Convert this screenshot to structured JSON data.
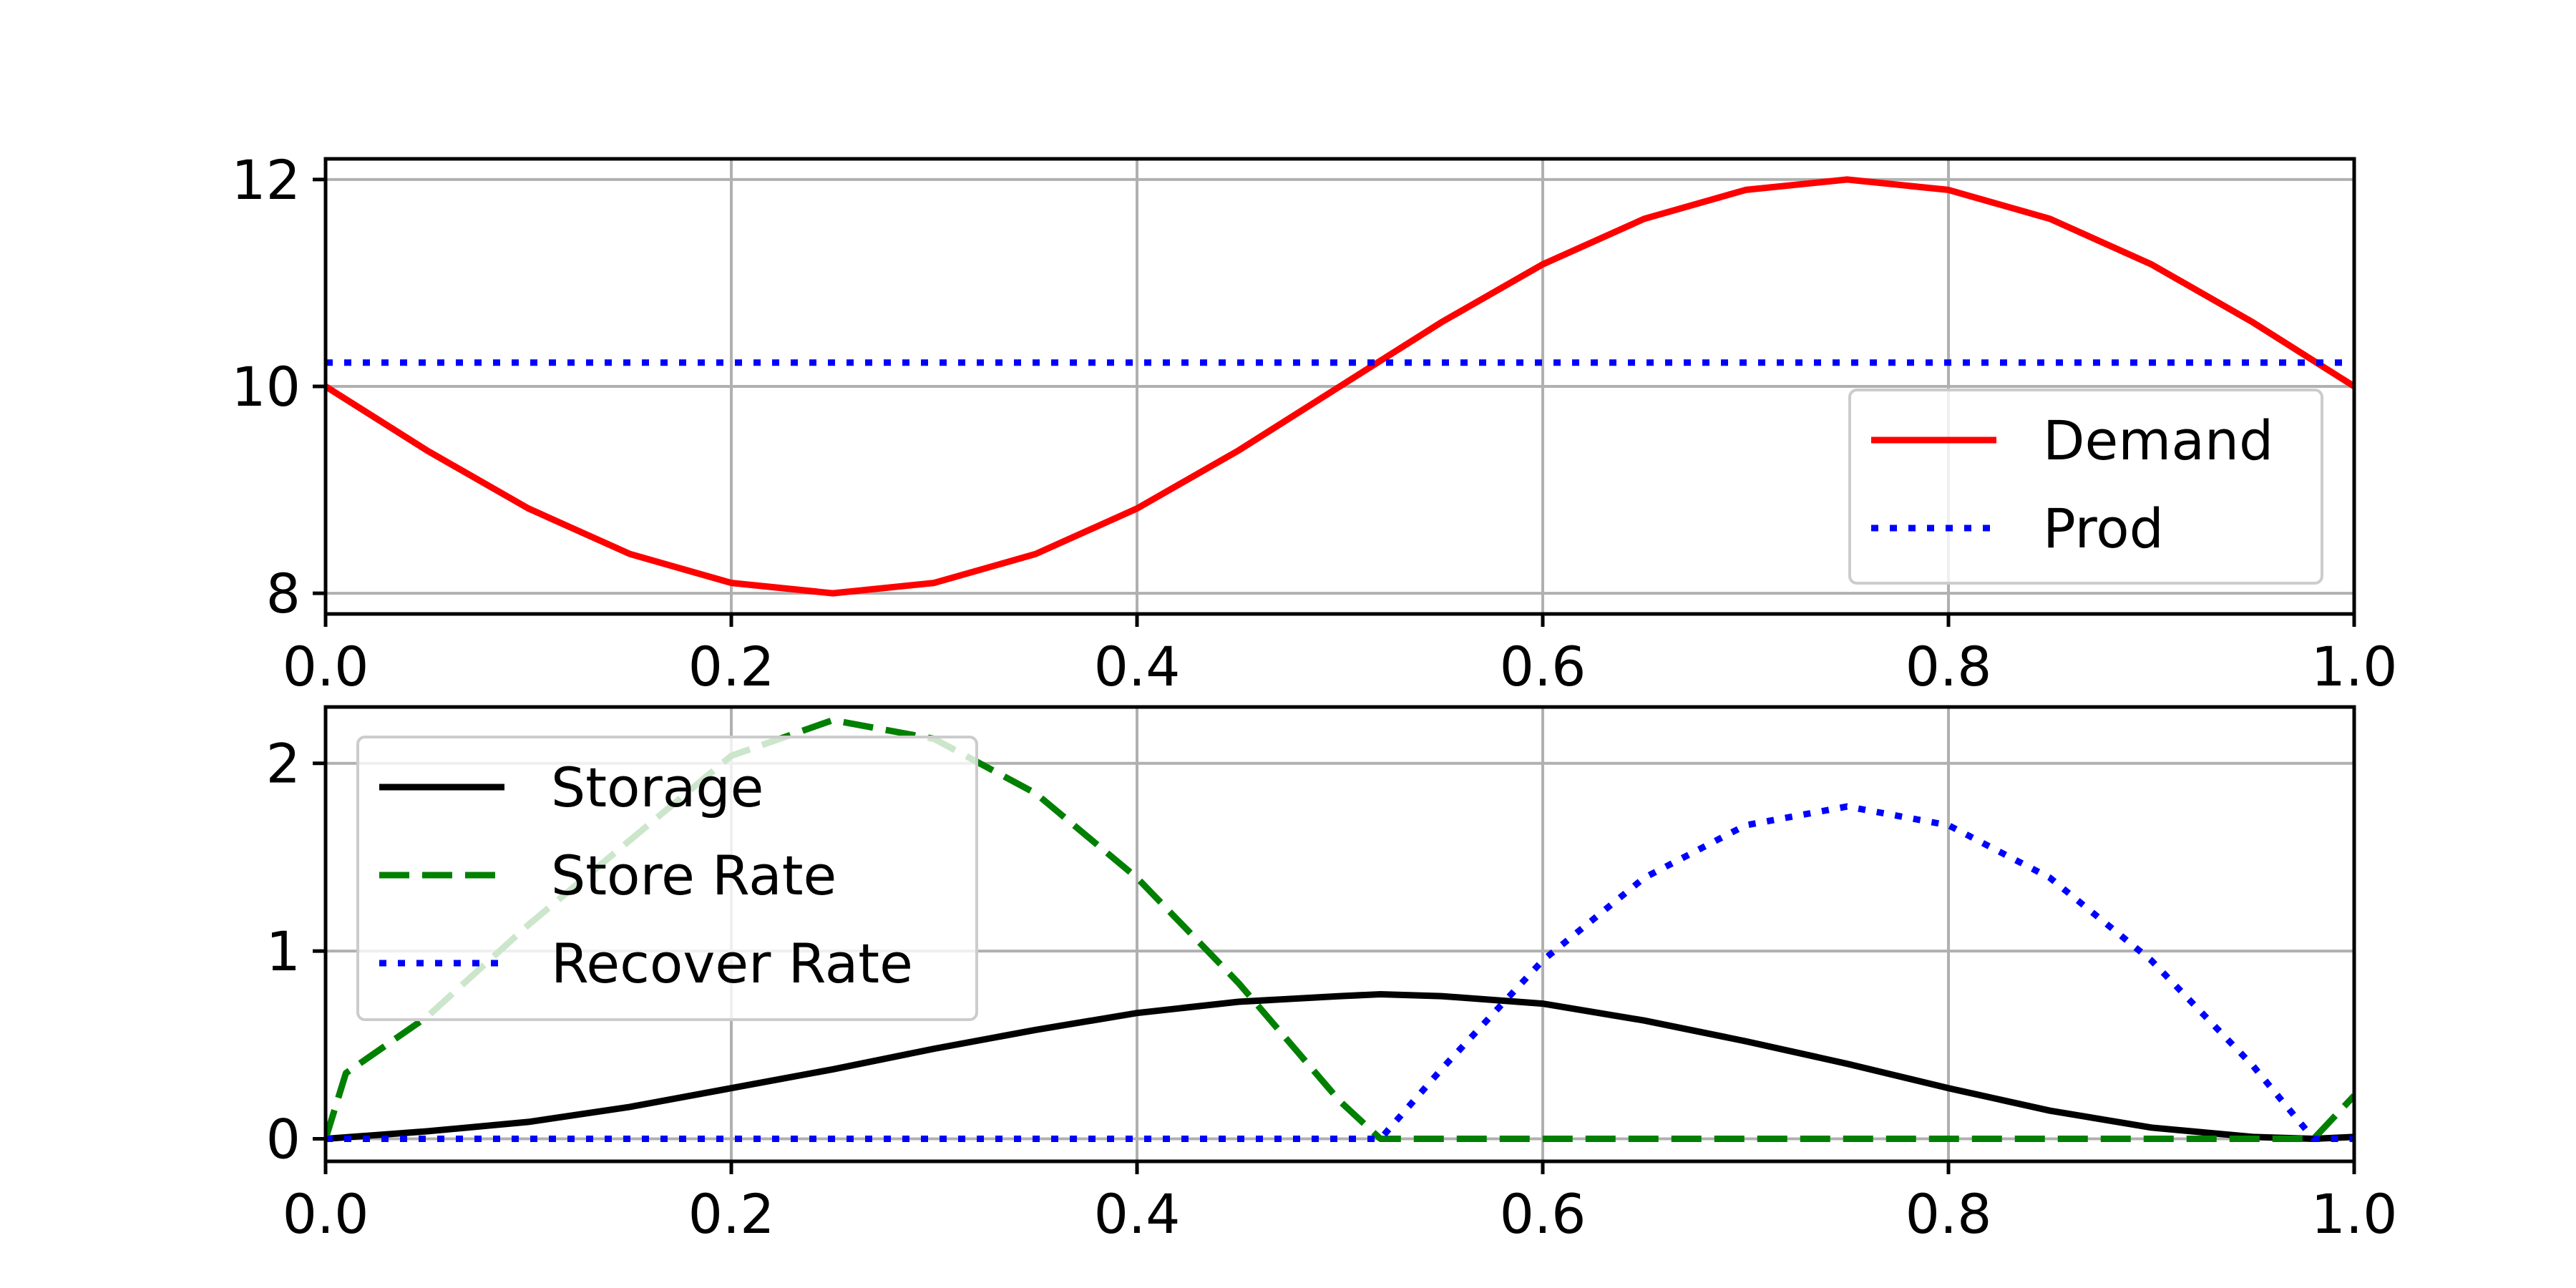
{
  "chart_data": [
    {
      "type": "line",
      "title": "",
      "xlabel": "",
      "ylabel": "",
      "xlim": [
        0.0,
        1.0
      ],
      "ylim": [
        7.8,
        12.2
      ],
      "xticks": [
        "0.0",
        "0.2",
        "0.4",
        "0.6",
        "0.8",
        "1.0"
      ],
      "yticks": [
        "8",
        "10",
        "12"
      ],
      "grid": true,
      "legend_position": "lower-right",
      "x": [
        0.0,
        0.05,
        0.1,
        0.15,
        0.2,
        0.25,
        0.3,
        0.35,
        0.4,
        0.45,
        0.5,
        0.55,
        0.6,
        0.65,
        0.7,
        0.75,
        0.8,
        0.85,
        0.9,
        0.95,
        1.0
      ],
      "series": [
        {
          "name": "Demand",
          "color": "#ff0000",
          "style": "solid",
          "values": [
            10.0,
            9.38,
            8.82,
            8.38,
            8.1,
            8.0,
            8.1,
            8.38,
            8.82,
            9.38,
            10.0,
            10.62,
            11.18,
            11.62,
            11.9,
            12.0,
            11.9,
            11.62,
            11.18,
            10.62,
            10.0
          ]
        },
        {
          "name": "Prod",
          "color": "#0000ff",
          "style": "dotted",
          "values": [
            10.23,
            10.23,
            10.23,
            10.23,
            10.23,
            10.23,
            10.23,
            10.23,
            10.23,
            10.23,
            10.23,
            10.23,
            10.23,
            10.23,
            10.23,
            10.23,
            10.23,
            10.23,
            10.23,
            10.23,
            10.23
          ]
        }
      ]
    },
    {
      "type": "line",
      "title": "",
      "xlabel": "",
      "ylabel": "",
      "xlim": [
        0.0,
        1.0
      ],
      "ylim": [
        -0.12,
        2.3
      ],
      "xticks": [
        "0.0",
        "0.2",
        "0.4",
        "0.6",
        "0.8",
        "1.0"
      ],
      "yticks": [
        "0",
        "1",
        "2"
      ],
      "grid": true,
      "legend_position": "upper-left",
      "series": [
        {
          "name": "Storage",
          "color": "#000000",
          "style": "solid",
          "x": [
            0.0,
            0.05,
            0.1,
            0.15,
            0.2,
            0.25,
            0.3,
            0.35,
            0.4,
            0.45,
            0.5,
            0.52,
            0.55,
            0.6,
            0.65,
            0.7,
            0.75,
            0.8,
            0.85,
            0.9,
            0.95,
            0.98,
            1.0
          ],
          "values": [
            0.0,
            0.04,
            0.09,
            0.17,
            0.27,
            0.37,
            0.48,
            0.58,
            0.67,
            0.73,
            0.76,
            0.77,
            0.76,
            0.72,
            0.63,
            0.52,
            0.4,
            0.27,
            0.15,
            0.06,
            0.01,
            0.0,
            0.01
          ]
        },
        {
          "name": "Store Rate",
          "color": "#008000",
          "style": "dashed",
          "x": [
            0.0,
            0.01,
            0.05,
            0.1,
            0.15,
            0.2,
            0.25,
            0.3,
            0.35,
            0.4,
            0.45,
            0.5,
            0.52,
            0.55,
            0.6,
            0.7,
            0.8,
            0.9,
            0.95,
            0.98,
            1.0
          ],
          "values": [
            0.0,
            0.35,
            0.65,
            1.14,
            1.59,
            2.04,
            2.23,
            2.13,
            1.84,
            1.39,
            0.83,
            0.2,
            0.0,
            0.0,
            0.0,
            0.0,
            0.0,
            0.0,
            0.0,
            0.0,
            0.23
          ]
        },
        {
          "name": "Recover Rate",
          "color": "#0000ff",
          "style": "dotted",
          "x": [
            0.0,
            0.1,
            0.2,
            0.3,
            0.4,
            0.5,
            0.52,
            0.55,
            0.6,
            0.65,
            0.7,
            0.75,
            0.8,
            0.85,
            0.9,
            0.95,
            0.98,
            1.0
          ],
          "values": [
            0.0,
            0.0,
            0.0,
            0.0,
            0.0,
            0.0,
            0.0,
            0.37,
            0.95,
            1.39,
            1.67,
            1.77,
            1.67,
            1.39,
            0.95,
            0.39,
            0.0,
            0.0
          ]
        }
      ]
    }
  ]
}
